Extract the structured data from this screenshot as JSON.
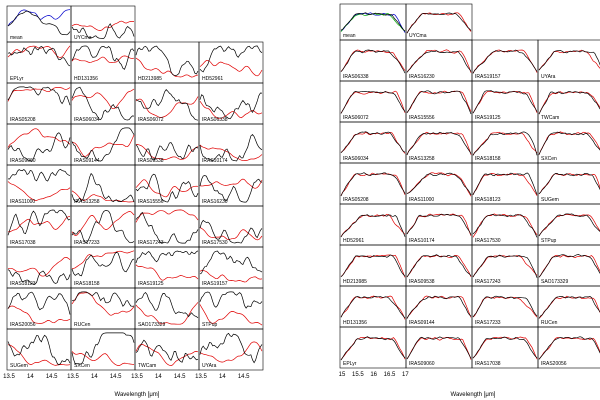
{
  "chart_data": [
    {
      "type": "line",
      "panel": "left",
      "xlabel": "Wavelength [μm]",
      "xlim": [
        13.5,
        15.0
      ],
      "x_ticks": [
        "13.5",
        "14",
        "14.5",
        "13.5",
        "14",
        "14.5",
        "13.5",
        "14",
        "14.5",
        "13.5",
        "14",
        "14.5"
      ],
      "series_colors": {
        "observed": "#000000",
        "model": "#e00000",
        "mean_variant": "#0000cc"
      },
      "grid_columns": 4,
      "subplot_labels": [
        "mean",
        "UYCma",
        "EPLyr",
        "HD131356",
        "HD213985",
        "HD52961",
        "IRAS05208",
        "IRAS06034",
        "IRAS06072",
        "IRAS06338",
        "IRAS09060",
        "IRAS09144",
        "IRAS09538",
        "IRAS10174",
        "IRAS11000",
        "IRAS13258",
        "IRAS15556",
        "IRAS16230",
        "IRAS17038",
        "IRAS17233",
        "IRAS17243",
        "IRAS17530",
        "IRAS18123",
        "IRAS18158",
        "IRAS19125",
        "IRAS19157",
        "IRAS20056",
        "RUCen",
        "SAO173329",
        "STPup",
        "SUGem",
        "SXCen",
        "TWCam",
        "UYAra"
      ]
    },
    {
      "type": "line",
      "panel": "right",
      "xlabel": "Wavelength [μm]",
      "xlim": [
        15.0,
        17.0
      ],
      "x_ticks": [
        "15",
        "15.5",
        "16",
        "16.5",
        "17"
      ],
      "series_colors": {
        "observed": "#000000",
        "model": "#e00000",
        "mean_variant_1": "#0000cc",
        "mean_variant_2": "#00aa00"
      },
      "grid_columns": 4,
      "subplot_labels": [
        "mean",
        "UYCma",
        "IRAS06338",
        "IRAS16230",
        "IRAS19157",
        "UYAra",
        "IRAS06072",
        "IRAS15556",
        "IRAS19125",
        "TWCam",
        "IRAS06034",
        "IRAS13258",
        "IRAS18158",
        "SXCen",
        "IRAS05208",
        "IRAS11000",
        "IRAS18123",
        "SUGem",
        "HD52961",
        "IRAS10174",
        "IRAS17530",
        "STPup",
        "HD213985",
        "IRAS09538",
        "IRAS17243",
        "SAO173329",
        "HD131356",
        "IRAS09144",
        "IRAS17233",
        "RUCen",
        "EPLyr",
        "IRAS09060",
        "IRAS17038",
        "IRAS20056"
      ]
    }
  ]
}
